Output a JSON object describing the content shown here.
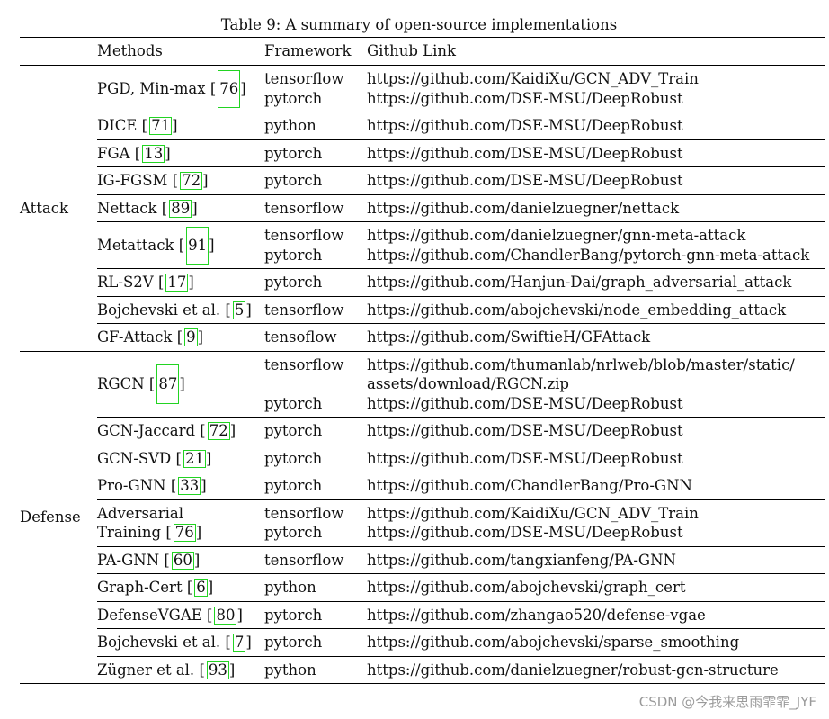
{
  "caption": "Table 9: A summary of open-source implementations",
  "header": {
    "methods": "Methods",
    "framework": "Framework",
    "link": "Github Link"
  },
  "groups": [
    {
      "label": "Attack",
      "rows": [
        {
          "method": "PGD, Min-max",
          "cite": "76",
          "tall": true,
          "frameworks": [
            "tensorflow",
            "pytorch"
          ],
          "links": [
            "https://github.com/KaidiXu/GCN_ADV_Train",
            "https://github.com/DSE-MSU/DeepRobust"
          ]
        },
        {
          "method": "DICE",
          "cite": "71",
          "frameworks": [
            "python"
          ],
          "links": [
            "https://github.com/DSE-MSU/DeepRobust"
          ]
        },
        {
          "method": "FGA",
          "cite": "13",
          "frameworks": [
            "pytorch"
          ],
          "links": [
            "https://github.com/DSE-MSU/DeepRobust"
          ]
        },
        {
          "method": "IG-FGSM",
          "cite": "72",
          "frameworks": [
            "pytorch"
          ],
          "links": [
            "https://github.com/DSE-MSU/DeepRobust"
          ]
        },
        {
          "method": "Nettack",
          "cite": "89",
          "frameworks": [
            "tensorflow"
          ],
          "links": [
            "https://github.com/danielzuegner/nettack"
          ]
        },
        {
          "method": "Metattack",
          "cite": "91",
          "tall": true,
          "frameworks": [
            "tensorflow",
            "pytorch"
          ],
          "links": [
            "https://github.com/danielzuegner/gnn-meta-attack",
            "https://github.com/ChandlerBang/pytorch-gnn-meta-attack"
          ]
        },
        {
          "method": "RL-S2V",
          "cite": "17",
          "frameworks": [
            "pytorch"
          ],
          "links": [
            "https://github.com/Hanjun-Dai/graph_adversarial_attack"
          ]
        },
        {
          "method": "Bojchevski et al.",
          "cite": "5",
          "frameworks": [
            "tensorflow"
          ],
          "links": [
            "https://github.com/abojchevski/node_embedding_attack"
          ]
        },
        {
          "method": "GF-Attack",
          "cite": "9",
          "frameworks": [
            "tensoflow"
          ],
          "links": [
            "https://github.com/SwiftieH/GFAttack"
          ]
        }
      ]
    },
    {
      "label": "Defense",
      "rows": [
        {
          "method": "RGCN",
          "cite": "87",
          "tall": true,
          "rgcn": true,
          "frameworks": [
            "tensorflow",
            "",
            "pytorch"
          ],
          "links": [
            "https://github.com/thumanlab/nrlweb/blob/master/static/",
            "assets/download/RGCN.zip",
            "https://github.com/DSE-MSU/DeepRobust"
          ]
        },
        {
          "method": "GCN-Jaccard",
          "cite": "72",
          "frameworks": [
            "pytorch"
          ],
          "links": [
            "https://github.com/DSE-MSU/DeepRobust"
          ]
        },
        {
          "method": "GCN-SVD",
          "cite": "21",
          "frameworks": [
            "pytorch"
          ],
          "links": [
            "https://github.com/DSE-MSU/DeepRobust"
          ]
        },
        {
          "method": "Pro-GNN",
          "cite": "33",
          "frameworks": [
            "pytorch"
          ],
          "links": [
            "https://github.com/ChandlerBang/Pro-GNN"
          ]
        },
        {
          "method": "Adversarial\nTraining",
          "cite": "76",
          "frameworks": [
            "tensorflow",
            "pytorch"
          ],
          "links": [
            "https://github.com/KaidiXu/GCN_ADV_Train",
            "https://github.com/DSE-MSU/DeepRobust"
          ]
        },
        {
          "method": "PA-GNN",
          "cite": "60",
          "frameworks": [
            "tensorflow"
          ],
          "links": [
            "https://github.com/tangxianfeng/PA-GNN"
          ]
        },
        {
          "method": "Graph-Cert",
          "cite": "6",
          "frameworks": [
            "python"
          ],
          "links": [
            "https://github.com/abojchevski/graph_cert"
          ]
        },
        {
          "method": "DefenseVGAE",
          "cite": "80",
          "frameworks": [
            "pytorch"
          ],
          "links": [
            "https://github.com/zhangao520/defense-vgae"
          ]
        },
        {
          "method": "Bojchevski et al.",
          "cite": "7",
          "frameworks": [
            "pytorch"
          ],
          "links": [
            "https://github.com/abojchevski/sparse_smoothing"
          ]
        },
        {
          "method": "Zügner et al.",
          "cite": "93",
          "frameworks": [
            "python"
          ],
          "links": [
            "https://github.com/danielzuegner/robust-gcn-structure"
          ]
        }
      ]
    }
  ],
  "watermark": "CSDN @今我来思雨霏霏_JYF"
}
